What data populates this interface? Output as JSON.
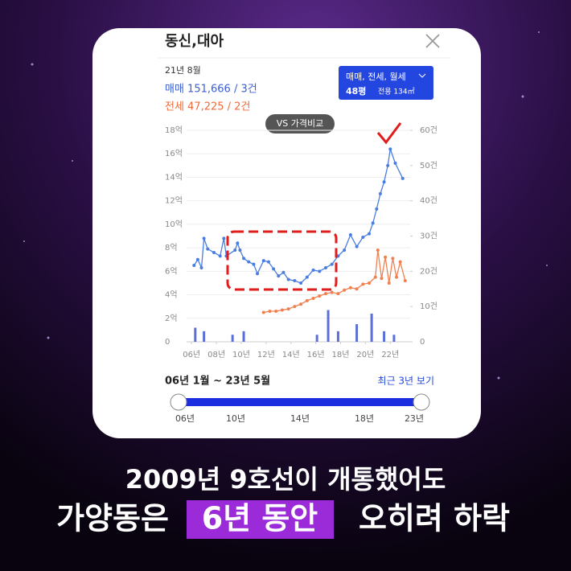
{
  "header": {
    "title": "동신,대아"
  },
  "info": {
    "date": "21년 8월",
    "sale": "매매 151,666 / 3건",
    "jeonse": "전세 47,225 / 2건"
  },
  "compare_button": "VS 가격비교",
  "filter": {
    "type": "매매, 전세, 월세",
    "size": "48평",
    "area": "전용 134㎡"
  },
  "chart_data": {
    "type": "line",
    "xlim": [
      2005.6,
      2023.6
    ],
    "xticks": [
      {
        "value": 2006,
        "label": "06년"
      },
      {
        "value": 2008,
        "label": "08년"
      },
      {
        "value": 2010,
        "label": "10년"
      },
      {
        "value": 2012,
        "label": "12년"
      },
      {
        "value": 2014,
        "label": "14년"
      },
      {
        "value": 2016,
        "label": "16년"
      },
      {
        "value": 2018,
        "label": "18년"
      },
      {
        "value": 2020,
        "label": "20년"
      },
      {
        "value": 2022,
        "label": "22년"
      }
    ],
    "ylim": [
      0,
      18
    ],
    "yticks": [
      0,
      {
        "value": 2,
        "label": "2억"
      },
      {
        "value": 4,
        "label": "4억"
      },
      {
        "value": 6,
        "label": "6억"
      },
      {
        "value": 8,
        "label": "8억"
      },
      {
        "value": 10,
        "label": "10억"
      },
      {
        "value": 12,
        "label": "12억"
      },
      {
        "value": 14,
        "label": "14억"
      },
      {
        "value": 16,
        "label": "16억"
      },
      {
        "value": 18,
        "label": "18억"
      }
    ],
    "y2lim": [
      0,
      60
    ],
    "y2ticks": [
      0,
      {
        "value": 10,
        "label": "10건"
      },
      {
        "value": 20,
        "label": "20건"
      },
      {
        "value": 30,
        "label": "30건"
      },
      {
        "value": 40,
        "label": "40건"
      },
      {
        "value": 50,
        "label": "50건"
      },
      {
        "value": 60,
        "label": "60건"
      }
    ],
    "grid": true,
    "series": [
      {
        "color": "#4a7de0",
        "x": [
          2006.2,
          2006.5,
          2006.8,
          2007.0,
          2007.3,
          2007.8,
          2008.3,
          2008.6,
          2008.8,
          2009.5,
          2009.7,
          2009.9,
          2010.2,
          2010.6,
          2011.0,
          2011.3,
          2011.8,
          2012.2,
          2012.6,
          2013.0,
          2013.4,
          2013.8,
          2014.3,
          2014.8,
          2015.3,
          2015.8,
          2016.3,
          2016.8,
          2017.3,
          2017.8,
          2018.3,
          2018.8,
          2019.3,
          2019.8,
          2020.3,
          2020.6,
          2020.9,
          2021.2,
          2021.5,
          2021.8,
          2022.0,
          2022.4,
          2023.0
        ],
        "values": [
          6.5,
          7,
          6.3,
          8.8,
          7.9,
          7.6,
          7.3,
          8.8,
          7.3,
          7.8,
          8.4,
          7.8,
          7.1,
          6.8,
          6.6,
          5.8,
          6.9,
          6.8,
          6.2,
          5.6,
          5.9,
          5.3,
          5.2,
          5.0,
          5.5,
          6.1,
          6.0,
          6.3,
          6.6,
          7.3,
          7.8,
          9.1,
          8.1,
          8.9,
          9.2,
          10.1,
          11.3,
          12.6,
          13.6,
          15.0,
          16.4,
          15.2,
          13.9
        ]
      },
      {
        "color": "#f08050",
        "x": [
          2011.8,
          2012.3,
          2012.8,
          2013.3,
          2013.8,
          2014.3,
          2014.8,
          2015.3,
          2015.8,
          2016.3,
          2016.8,
          2017.3,
          2017.8,
          2018.3,
          2018.8,
          2019.3,
          2019.8,
          2020.3,
          2020.8,
          2021.0,
          2021.3,
          2021.6,
          2021.9,
          2022.2,
          2022.5,
          2022.8,
          2023.2
        ],
        "values": [
          2.5,
          2.6,
          2.6,
          2.7,
          2.8,
          3.0,
          3.2,
          3.5,
          3.7,
          3.9,
          4.1,
          4.2,
          4.1,
          4.4,
          4.6,
          4.5,
          4.9,
          5.0,
          5.5,
          7.8,
          5.4,
          7.2,
          5.0,
          7.1,
          5.5,
          6.8,
          5.2
        ]
      },
      {
        "type": "bar",
        "axis": "y2",
        "color": "#5a6fd8",
        "x": [
          2006.3,
          2007.0,
          2009.3,
          2010.2,
          2016.1,
          2017.0,
          2017.8,
          2019.3,
          2020.5,
          2021.5,
          2022.3
        ],
        "values": [
          4,
          3,
          2,
          3,
          2,
          9,
          3,
          5,
          8,
          3,
          2
        ]
      }
    ]
  },
  "range": {
    "label": "06년 1월 ~ 23년 5월",
    "recent": "최근 3년 보기",
    "ticks": [
      "06년",
      "10년",
      "14년",
      "18년",
      "23년"
    ]
  },
  "caption": {
    "line1": "2009년 9호선이 개통했어도",
    "line2": [
      "가양동은",
      "6년 동안",
      "오히려 하락"
    ]
  }
}
